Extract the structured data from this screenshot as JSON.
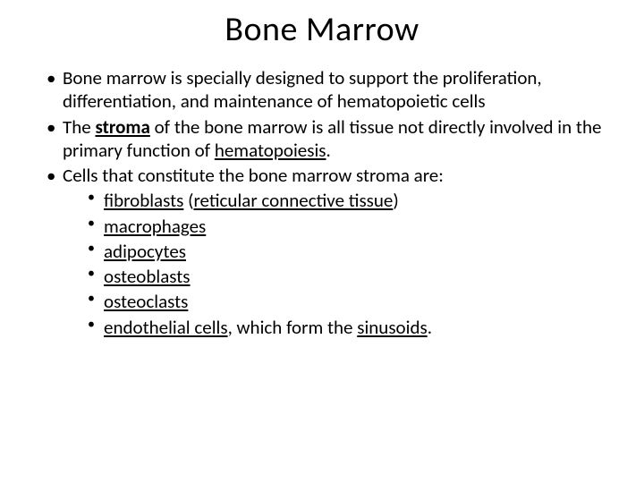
{
  "title": "Bone Marrow",
  "bullets": {
    "b1_part1": "Bone marrow is specially designed to support the proliferation, differentiation, and maintenance of  hematopoietic cells",
    "b2_part1": "The ",
    "b2_stroma": "stroma",
    "b2_part2": " of the bone marrow is all tissue not directly involved in the primary function of ",
    "b2_hema": "hematopoiesis",
    "b2_part3": ".",
    "b3": "Cells that constitute the bone marrow stroma are:",
    "s1_a": "fibroblasts",
    "s1_b": " (",
    "s1_c": "reticular connective tissue",
    "s1_d": ")",
    "s2": "macrophages",
    "s3": "adipocytes",
    "s4": "osteoblasts",
    "s5": "osteoclasts",
    "s6_a": "endothelial cells",
    "s6_b": ", which form the ",
    "s6_c": "sinusoids",
    "s6_d": "."
  }
}
